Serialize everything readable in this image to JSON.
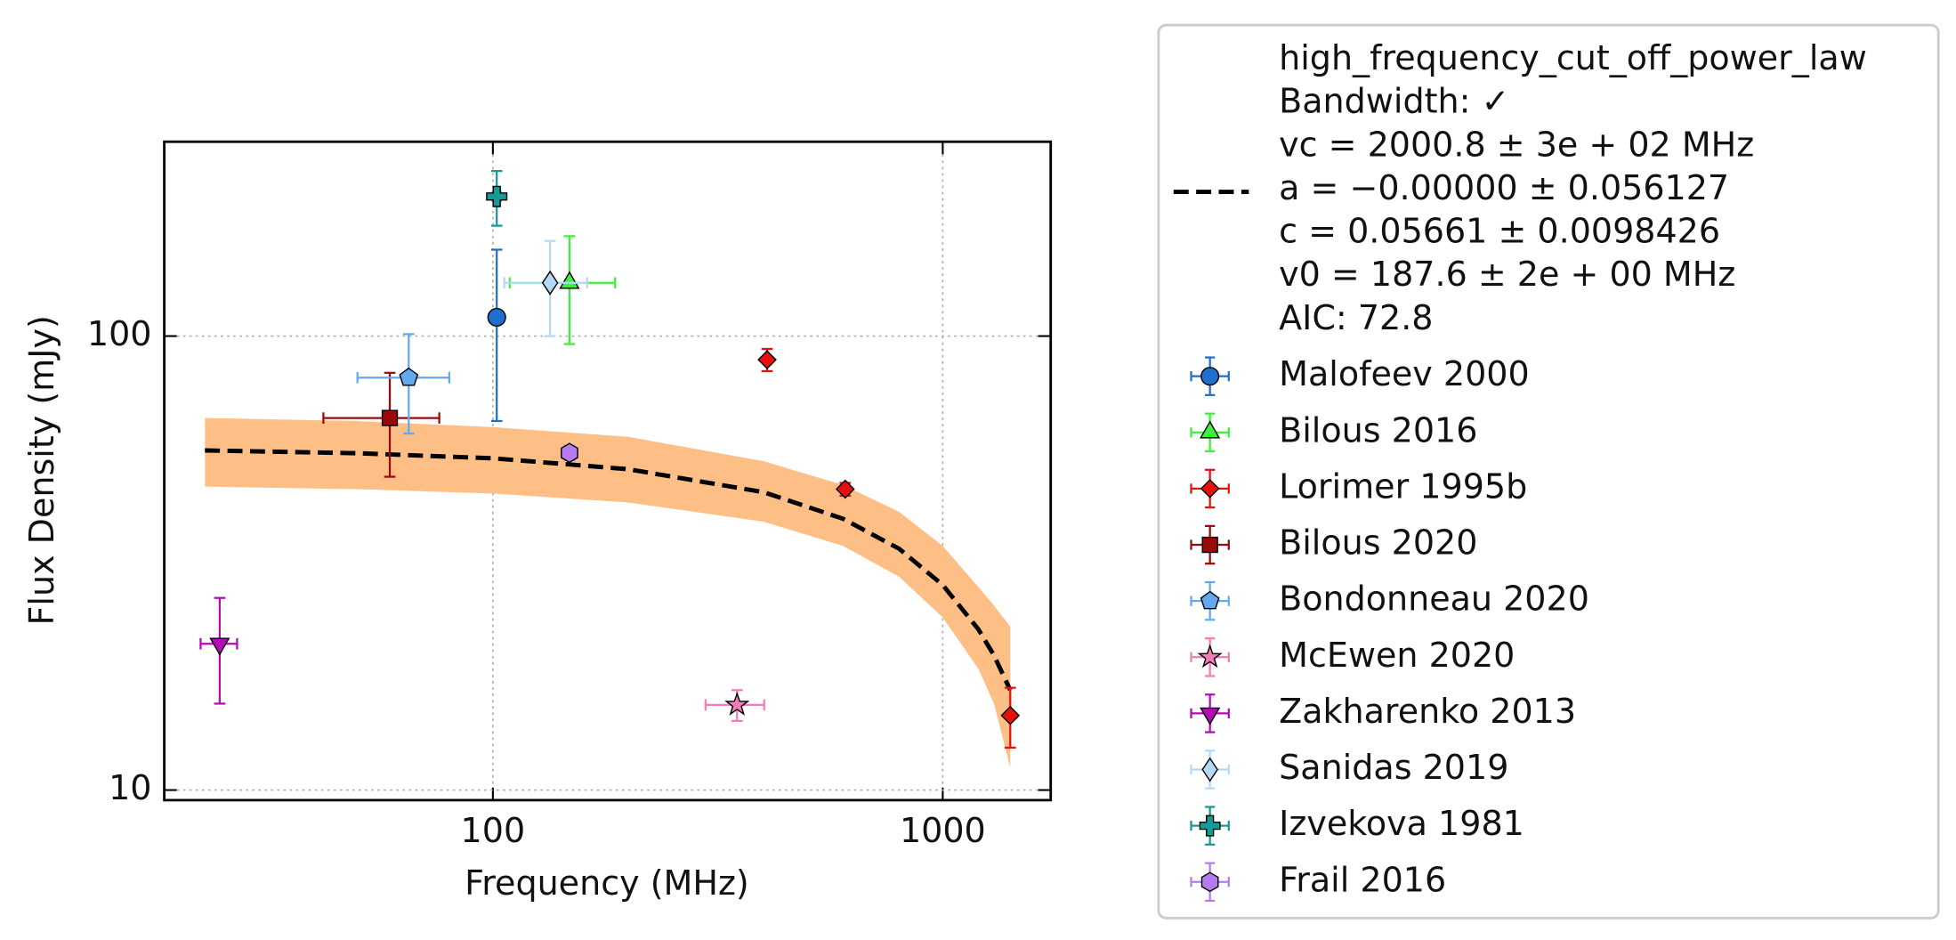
{
  "chart_data": {
    "type": "scatter",
    "x_label": "Frequency (MHz)",
    "y_label": "Flux Density (mJy)",
    "log_x": true,
    "log_y": true,
    "xlim": [
      18.6,
      1738
    ],
    "ylim": [
      9.5,
      268
    ],
    "xticks": [
      100,
      1000
    ],
    "yticks": [
      10,
      100
    ],
    "grid": true,
    "legend": "outside-right",
    "fit": {
      "label": [
        "high_frequency_cut_off_power_law",
        "Bandwidth: ✓",
        "vc = 2000.8 ± 3e + 02 MHz",
        "a = −0.00000 ± 0.056127",
        "c = 0.05661 ± 0.0098426",
        "v0 = 187.6 ± 2e + 00 MHz",
        "AIC: 72.8"
      ],
      "color": "#000000",
      "band_color": "#fdbf86",
      "x": [
        22.9,
        50,
        100,
        200,
        400,
        600,
        800,
        1000,
        1200,
        1300,
        1413
      ],
      "y": [
        56.0,
        55.2,
        53.8,
        50.9,
        45.3,
        39.6,
        34.0,
        28.3,
        22.6,
        19.8,
        16.6
      ],
      "y_low": [
        46.6,
        46,
        45,
        43,
        39,
        34.5,
        29.5,
        24,
        18.5,
        15.5,
        11.2
      ],
      "y_high": [
        66,
        65,
        63,
        60,
        53,
        47,
        41,
        34.5,
        28,
        25.5,
        22.9
      ]
    },
    "series": [
      {
        "name": "Malofeev 2000",
        "marker": "circle",
        "color": "#1f6fcf",
        "x": [
          102
        ],
        "y": [
          110
        ],
        "xerr": [
          0
        ],
        "yerr": [
          45
        ]
      },
      {
        "name": "Bilous 2016",
        "marker": "triangle",
        "color": "#3cf03c",
        "x": [
          148
        ],
        "y": [
          131
        ],
        "xerr": [
          39
        ],
        "yerr": [
          35
        ]
      },
      {
        "name": "Lorimer 1995b",
        "marker": "diamond",
        "color": "#e8100c",
        "x": [
          407,
          607,
          1413
        ],
        "y": [
          88.7,
          46,
          14.6
        ],
        "xerr": [
          0,
          0,
          0
        ],
        "yerr": [
          5,
          1.5,
          2.2
        ]
      },
      {
        "name": "Bilous 2020",
        "marker": "square",
        "color": "#9a0a0a",
        "x": [
          59
        ],
        "y": [
          66
        ],
        "xerr": [
          17
        ],
        "yerr": [
          17
        ]
      },
      {
        "name": "Bondonneau 2020",
        "marker": "pentagon",
        "color": "#62aaf0",
        "x": [
          65
        ],
        "y": [
          81
        ],
        "xerr": [
          15
        ],
        "yerr": [
          20
        ]
      },
      {
        "name": "McEwen 2020",
        "marker": "star",
        "color": "#f37cb8",
        "x": [
          349
        ],
        "y": [
          15.4
        ],
        "xerr": [
          52
        ],
        "yerr": [
          1.2
        ]
      },
      {
        "name": "Zakharenko 2013",
        "marker": "triangle-down",
        "color": "#b40cb4",
        "x": [
          24.7
        ],
        "y": [
          21
        ],
        "xerr": [
          2.3
        ],
        "yerr": [
          5.5
        ]
      },
      {
        "name": "Sanidas 2019",
        "marker": "thin-diamond",
        "color": "#b5d8f7",
        "x": [
          134
        ],
        "y": [
          131
        ],
        "xerr": [
          28
        ],
        "yerr": [
          31
        ]
      },
      {
        "name": "Izvekova 1981",
        "marker": "plus",
        "color": "#159a94",
        "x": [
          102
        ],
        "y": [
          203
        ],
        "xerr": [
          2
        ],
        "yerr": [
          28
        ]
      },
      {
        "name": "Frail 2016",
        "marker": "hexagon",
        "color": "#b57cf2",
        "x": [
          148
        ],
        "y": [
          55.3
        ],
        "xerr": [
          0
        ],
        "yerr": [
          2
        ]
      }
    ]
  }
}
